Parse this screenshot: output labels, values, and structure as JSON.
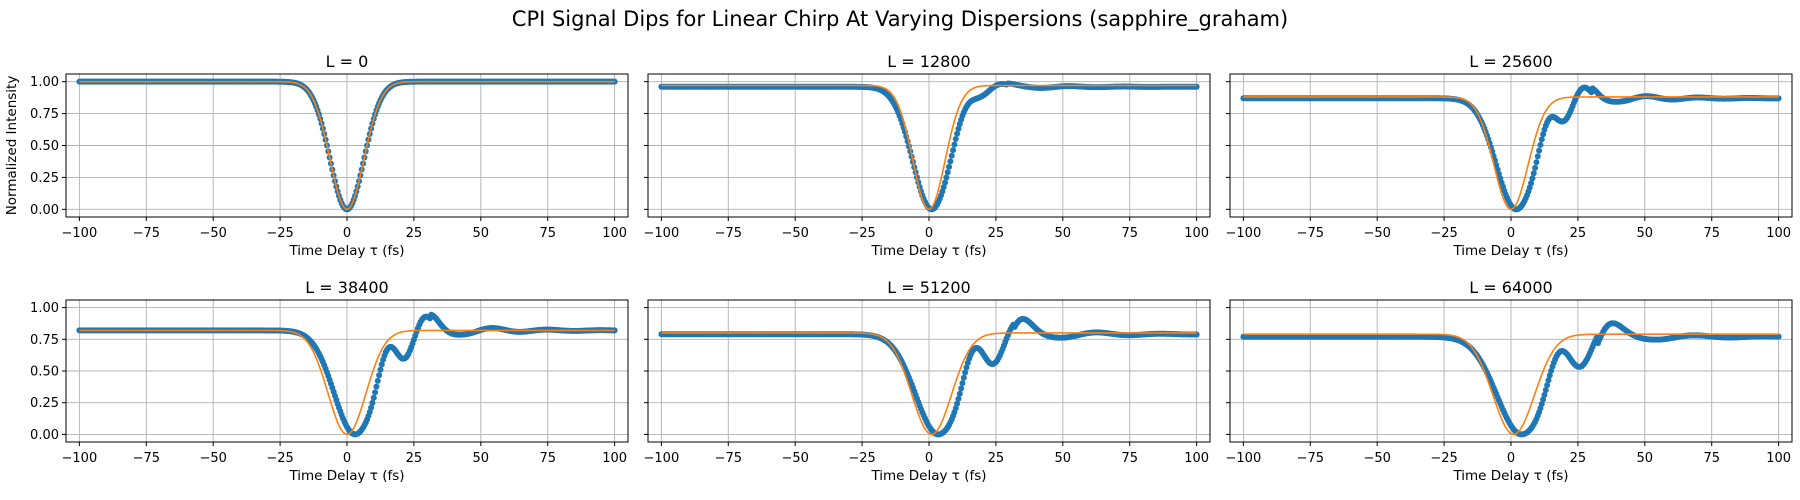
{
  "figure": {
    "title": "CPI Signal Dips for Linear Chirp At Varying Dispersions (sapphire_graham)"
  },
  "colors": {
    "data": "#1f77b4",
    "fit": "#ff7f0e",
    "grid": "#b0b0b0"
  },
  "chart_data": [
    {
      "type": "scatter+line",
      "title": "L = 0",
      "xlabel": "Time Delay τ (fs)",
      "ylabel": "Normalized Intensity",
      "xlim": [
        -105,
        105
      ],
      "ylim": [
        -0.06,
        1.06
      ],
      "xticks": [
        -100,
        -75,
        -50,
        -25,
        0,
        25,
        50,
        75,
        100
      ],
      "yticks": [
        0.0,
        0.25,
        0.5,
        0.75,
        1.0
      ],
      "ytick_labels": [
        "0.00",
        "0.25",
        "0.50",
        "0.75",
        "1.00"
      ],
      "grid": true,
      "series": [
        {
          "kind": "measured",
          "baseline": 1.0,
          "dip_center": 0,
          "dip_width": 9,
          "ripple_amp": 0.0,
          "ripple_period": 16,
          "ripple_decay": 12
        },
        {
          "kind": "fit",
          "baseline": 1.0,
          "center": 0,
          "width": 9
        }
      ]
    },
    {
      "type": "scatter+line",
      "title": "L = 12800",
      "xlabel": "Time Delay τ (fs)",
      "ylabel": "",
      "xlim": [
        -105,
        105
      ],
      "ylim": [
        -0.06,
        1.06
      ],
      "xticks": [
        -100,
        -75,
        -50,
        -25,
        0,
        25,
        50,
        75,
        100
      ],
      "yticks": [
        0.0,
        0.25,
        0.5,
        0.75,
        1.0
      ],
      "ytick_labels": [
        "",
        "",
        "",
        "",
        ""
      ],
      "grid": true,
      "series": [
        {
          "kind": "measured",
          "baseline": 0.96,
          "dip_center": 1,
          "dip_width": 10,
          "ripple_amp": 0.05,
          "ripple_period": 17,
          "ripple_decay": 12
        },
        {
          "kind": "fit",
          "baseline": 0.97,
          "center": 0,
          "width": 8.5
        }
      ]
    },
    {
      "type": "scatter+line",
      "title": "L = 25600",
      "xlabel": "Time Delay τ (fs)",
      "ylabel": "",
      "xlim": [
        -105,
        105
      ],
      "ylim": [
        -0.06,
        1.06
      ],
      "xticks": [
        -100,
        -75,
        -50,
        -25,
        0,
        25,
        50,
        75,
        100
      ],
      "yticks": [
        0.0,
        0.25,
        0.5,
        0.75,
        1.0
      ],
      "ytick_labels": [
        "",
        "",
        "",
        "",
        ""
      ],
      "grid": true,
      "series": [
        {
          "kind": "measured",
          "baseline": 0.87,
          "dip_center": 2,
          "dip_width": 10.5,
          "ripple_amp": 0.14,
          "ripple_period": 16,
          "ripple_decay": 14
        },
        {
          "kind": "fit",
          "baseline": 0.88,
          "center": 0,
          "width": 9
        }
      ]
    },
    {
      "type": "scatter+line",
      "title": "L = 38400",
      "xlabel": "Time Delay τ (fs)",
      "ylabel": "",
      "xlim": [
        -105,
        105
      ],
      "ylim": [
        -0.06,
        1.06
      ],
      "xticks": [
        -100,
        -75,
        -50,
        -25,
        0,
        25,
        50,
        75,
        100
      ],
      "yticks": [
        0.0,
        0.25,
        0.5,
        0.75,
        1.0
      ],
      "ytick_labels": [
        "0.00",
        "0.25",
        "0.50",
        "0.75",
        "1.00"
      ],
      "grid": true,
      "series": [
        {
          "kind": "measured",
          "baseline": 0.82,
          "dip_center": 3,
          "dip_width": 11,
          "ripple_amp": 0.19,
          "ripple_period": 17,
          "ripple_decay": 15
        },
        {
          "kind": "fit",
          "baseline": 0.82,
          "center": 0,
          "width": 10
        }
      ]
    },
    {
      "type": "scatter+line",
      "title": "L = 51200",
      "xlabel": "Time Delay τ (fs)",
      "ylabel": "",
      "xlim": [
        -105,
        105
      ],
      "ylim": [
        -0.06,
        1.06
      ],
      "xticks": [
        -100,
        -75,
        -50,
        -25,
        0,
        25,
        50,
        75,
        100
      ],
      "yticks": [
        0.0,
        0.25,
        0.5,
        0.75,
        1.0
      ],
      "ytick_labels": [
        "",
        "",
        "",
        "",
        ""
      ],
      "grid": true,
      "series": [
        {
          "kind": "measured",
          "baseline": 0.79,
          "dip_center": 3.5,
          "dip_width": 12,
          "ripple_amp": 0.22,
          "ripple_period": 20,
          "ripple_decay": 17
        },
        {
          "kind": "fit",
          "baseline": 0.8,
          "center": 1,
          "width": 10.5
        }
      ]
    },
    {
      "type": "scatter+line",
      "title": "L = 64000",
      "xlabel": "Time Delay τ (fs)",
      "ylabel": "",
      "xlim": [
        -105,
        105
      ],
      "ylim": [
        -0.06,
        1.06
      ],
      "xticks": [
        -100,
        -75,
        -50,
        -25,
        0,
        25,
        50,
        75,
        100
      ],
      "yticks": [
        0.0,
        0.25,
        0.5,
        0.75,
        1.0
      ],
      "ytick_labels": [
        "",
        "",
        "",
        "",
        ""
      ],
      "grid": true,
      "series": [
        {
          "kind": "measured",
          "baseline": 0.77,
          "dip_center": 4,
          "dip_width": 13,
          "ripple_amp": 0.23,
          "ripple_period": 22,
          "ripple_decay": 18
        },
        {
          "kind": "fit",
          "baseline": 0.79,
          "center": 1,
          "width": 11
        }
      ]
    }
  ]
}
